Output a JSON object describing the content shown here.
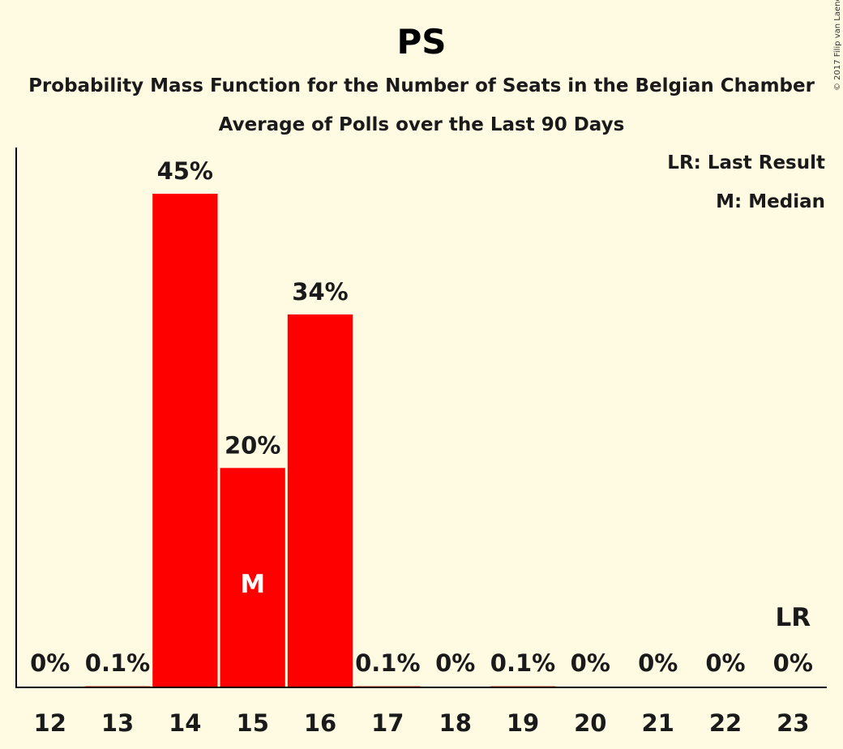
{
  "header": {
    "title": "PS",
    "subtitle_1": "Probability Mass Function for the Number of Seats in the Belgian Chamber",
    "subtitle_2": "Average of Polls over the Last 90 Days",
    "copyright": "© 2017 Filip van Laenen"
  },
  "legend": {
    "last_result": "LR: Last Result",
    "median": "M: Median"
  },
  "colors": {
    "background": "#fffbe3",
    "bar": "#ff0000",
    "median_text": "#ffffff",
    "text": "#1a1a1a"
  },
  "chart_data": {
    "type": "bar",
    "title": "PS",
    "subtitle": "Probability Mass Function for the Number of Seats in the Belgian Chamber — Average of Polls over the Last 90 Days",
    "xlabel": "",
    "ylabel": "",
    "categories": [
      "12",
      "13",
      "14",
      "15",
      "16",
      "17",
      "18",
      "19",
      "20",
      "21",
      "22",
      "23"
    ],
    "values": [
      0,
      0.1,
      45,
      20,
      34,
      0.1,
      0,
      0.1,
      0,
      0,
      0,
      0
    ],
    "data_labels": [
      "0%",
      "0.1%",
      "45%",
      "20%",
      "34%",
      "0.1%",
      "0%",
      "0.1%",
      "0%",
      "0%",
      "0%",
      "0%"
    ],
    "ylim": [
      0,
      45
    ],
    "grid": false,
    "legend_placement": "top-right",
    "markers": {
      "median": {
        "category": "15",
        "label": "M"
      },
      "last_result": {
        "category": "23",
        "label": "LR"
      }
    }
  }
}
